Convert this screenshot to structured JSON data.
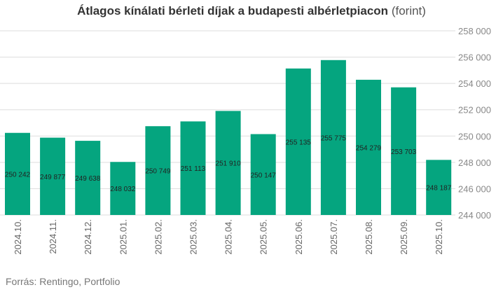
{
  "chart_data": {
    "type": "bar",
    "title": "Átlagos kínálati bérleti díjak a budapesti albérletpiacon",
    "subtitle": "(forint)",
    "categories": [
      "2024.10.",
      "2024.11.",
      "2024.12.",
      "2025.01.",
      "2025.02.",
      "2025.03.",
      "2025.04.",
      "2025.05.",
      "2025.06.",
      "2025.07.",
      "2025.08.",
      "2025.09.",
      "2025.10."
    ],
    "values": [
      250242,
      249877,
      249638,
      248032,
      250749,
      251113,
      251910,
      250147,
      255135,
      255775,
      254279,
      253703,
      248187
    ],
    "labels": [
      "250 242",
      "249 877",
      "249 638",
      "248 032",
      "250 749",
      "251 113",
      "251 910",
      "250 147",
      "255 135",
      "255 775",
      "254 279",
      "253 703",
      "248 187"
    ],
    "ylim": [
      244000,
      258000
    ],
    "yticks": [
      244000,
      246000,
      248000,
      250000,
      252000,
      254000,
      256000,
      258000
    ],
    "ytick_labels": [
      "244 000",
      "246 000",
      "248 000",
      "250 000",
      "252 000",
      "254 000",
      "256 000",
      "258 000"
    ],
    "y_axis_position": "right",
    "grid": true,
    "bar_color": "#05a57f",
    "xlabel": "",
    "ylabel": ""
  },
  "source": "Forrás: Rentingo, Portfolio"
}
